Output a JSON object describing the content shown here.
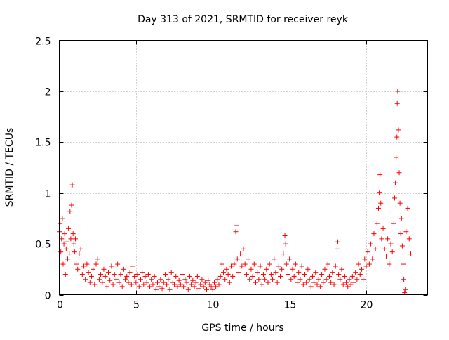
{
  "chart_data": {
    "type": "scatter",
    "title": "Day 313 of 2021, SRMTID for receiver reyk",
    "xlabel": "GPS time / hours",
    "ylabel": "SRMTID / TECUs",
    "xlim": [
      0,
      24
    ],
    "ylim": [
      0,
      2.5
    ],
    "xticks": [
      0,
      5,
      10,
      15,
      20
    ],
    "xtick_labels": [
      "0",
      "5",
      "10",
      "15",
      "20"
    ],
    "yticks": [
      0,
      0.5,
      1,
      1.5,
      2,
      2.5
    ],
    "ytick_labels": [
      "0",
      "0.5",
      "1",
      "1.5",
      "2",
      "2.5"
    ],
    "grid": true,
    "marker": "+",
    "color": "#ff0000",
    "series": [
      {
        "name": "SRMTID",
        "points": [
          [
            0.0,
            0.62
          ],
          [
            0.05,
            0.7
          ],
          [
            0.1,
            0.42
          ],
          [
            0.15,
            0.55
          ],
          [
            0.2,
            0.75
          ],
          [
            0.25,
            0.3
          ],
          [
            0.3,
            0.5
          ],
          [
            0.35,
            0.6
          ],
          [
            0.4,
            0.2
          ],
          [
            0.45,
            0.45
          ],
          [
            0.5,
            0.52
          ],
          [
            0.55,
            0.35
          ],
          [
            0.6,
            0.65
          ],
          [
            0.65,
            0.4
          ],
          [
            0.7,
            0.82
          ],
          [
            0.75,
            0.55
          ],
          [
            0.8,
            0.88
          ],
          [
            0.82,
            1.05
          ],
          [
            0.85,
            1.08
          ],
          [
            0.9,
            0.6
          ],
          [
            0.95,
            0.5
          ],
          [
            1.0,
            0.42
          ],
          [
            1.05,
            0.55
          ],
          [
            1.1,
            0.3
          ],
          [
            1.2,
            0.25
          ],
          [
            1.3,
            0.4
          ],
          [
            1.4,
            0.45
          ],
          [
            1.5,
            0.2
          ],
          [
            1.6,
            0.28
          ],
          [
            1.7,
            0.15
          ],
          [
            1.8,
            0.3
          ],
          [
            1.9,
            0.22
          ],
          [
            2.0,
            0.12
          ],
          [
            2.1,
            0.18
          ],
          [
            2.2,
            0.25
          ],
          [
            2.3,
            0.1
          ],
          [
            2.4,
            0.3
          ],
          [
            2.5,
            0.35
          ],
          [
            2.6,
            0.15
          ],
          [
            2.7,
            0.2
          ],
          [
            2.8,
            0.12
          ],
          [
            2.9,
            0.25
          ],
          [
            3.0,
            0.18
          ],
          [
            3.1,
            0.08
          ],
          [
            3.2,
            0.22
          ],
          [
            3.3,
            0.14
          ],
          [
            3.4,
            0.28
          ],
          [
            3.5,
            0.1
          ],
          [
            3.6,
            0.2
          ],
          [
            3.7,
            0.15
          ],
          [
            3.8,
            0.3
          ],
          [
            3.9,
            0.12
          ],
          [
            4.0,
            0.2
          ],
          [
            4.1,
            0.08
          ],
          [
            4.2,
            0.25
          ],
          [
            4.3,
            0.15
          ],
          [
            4.4,
            0.18
          ],
          [
            4.5,
            0.12
          ],
          [
            4.6,
            0.22
          ],
          [
            4.7,
            0.1
          ],
          [
            4.8,
            0.28
          ],
          [
            4.9,
            0.18
          ],
          [
            5.0,
            0.12
          ],
          [
            5.1,
            0.2
          ],
          [
            5.2,
            0.08
          ],
          [
            5.3,
            0.15
          ],
          [
            5.4,
            0.22
          ],
          [
            5.5,
            0.1
          ],
          [
            5.6,
            0.18
          ],
          [
            5.7,
            0.12
          ],
          [
            5.8,
            0.2
          ],
          [
            5.9,
            0.08
          ],
          [
            6.0,
            0.15
          ],
          [
            6.1,
            0.1
          ],
          [
            6.2,
            0.18
          ],
          [
            6.3,
            0.05
          ],
          [
            6.4,
            0.12
          ],
          [
            6.5,
            0.08
          ],
          [
            6.6,
            0.15
          ],
          [
            6.7,
            0.06
          ],
          [
            6.8,
            0.12
          ],
          [
            6.9,
            0.2
          ],
          [
            7.0,
            0.1
          ],
          [
            7.1,
            0.15
          ],
          [
            7.2,
            0.05
          ],
          [
            7.3,
            0.22
          ],
          [
            7.4,
            0.12
          ],
          [
            7.5,
            0.1
          ],
          [
            7.6,
            0.18
          ],
          [
            7.7,
            0.08
          ],
          [
            7.8,
            0.14
          ],
          [
            7.9,
            0.1
          ],
          [
            8.0,
            0.2
          ],
          [
            8.1,
            0.08
          ],
          [
            8.2,
            0.15
          ],
          [
            8.3,
            0.12
          ],
          [
            8.4,
            0.05
          ],
          [
            8.5,
            0.18
          ],
          [
            8.6,
            0.1
          ],
          [
            8.7,
            0.14
          ],
          [
            8.8,
            0.08
          ],
          [
            8.9,
            0.12
          ],
          [
            9.0,
            0.18
          ],
          [
            9.1,
            0.06
          ],
          [
            9.2,
            0.1
          ],
          [
            9.3,
            0.15
          ],
          [
            9.4,
            0.08
          ],
          [
            9.5,
            0.12
          ],
          [
            9.6,
            0.05
          ],
          [
            9.7,
            0.14
          ],
          [
            9.8,
            0.1
          ],
          [
            9.9,
            0.08
          ],
          [
            10.0,
            0.05
          ],
          [
            10.1,
            0.12
          ],
          [
            10.2,
            0.08
          ],
          [
            10.3,
            0.15
          ],
          [
            10.4,
            0.1
          ],
          [
            10.5,
            0.18
          ],
          [
            10.6,
            0.3
          ],
          [
            10.7,
            0.22
          ],
          [
            10.8,
            0.15
          ],
          [
            10.9,
            0.25
          ],
          [
            11.0,
            0.2
          ],
          [
            11.1,
            0.12
          ],
          [
            11.2,
            0.28
          ],
          [
            11.3,
            0.18
          ],
          [
            11.4,
            0.3
          ],
          [
            11.5,
            0.62
          ],
          [
            11.52,
            0.68
          ],
          [
            11.6,
            0.35
          ],
          [
            11.7,
            0.22
          ],
          [
            11.8,
            0.4
          ],
          [
            11.9,
            0.28
          ],
          [
            12.0,
            0.45
          ],
          [
            12.1,
            0.3
          ],
          [
            12.2,
            0.2
          ],
          [
            12.3,
            0.35
          ],
          [
            12.4,
            0.15
          ],
          [
            12.5,
            0.25
          ],
          [
            12.6,
            0.18
          ],
          [
            12.7,
            0.3
          ],
          [
            12.8,
            0.12
          ],
          [
            12.9,
            0.22
          ],
          [
            13.0,
            0.15
          ],
          [
            13.1,
            0.28
          ],
          [
            13.2,
            0.1
          ],
          [
            13.3,
            0.2
          ],
          [
            13.4,
            0.15
          ],
          [
            13.5,
            0.25
          ],
          [
            13.6,
            0.12
          ],
          [
            13.7,
            0.3
          ],
          [
            13.8,
            0.2
          ],
          [
            13.9,
            0.15
          ],
          [
            14.0,
            0.35
          ],
          [
            14.1,
            0.22
          ],
          [
            14.2,
            0.12
          ],
          [
            14.3,
            0.28
          ],
          [
            14.4,
            0.18
          ],
          [
            14.5,
            0.25
          ],
          [
            14.6,
            0.4
          ],
          [
            14.7,
            0.58
          ],
          [
            14.75,
            0.5
          ],
          [
            14.8,
            0.3
          ],
          [
            14.9,
            0.2
          ],
          [
            15.0,
            0.35
          ],
          [
            15.1,
            0.15
          ],
          [
            15.2,
            0.25
          ],
          [
            15.3,
            0.18
          ],
          [
            15.4,
            0.3
          ],
          [
            15.5,
            0.12
          ],
          [
            15.6,
            0.22
          ],
          [
            15.7,
            0.15
          ],
          [
            15.8,
            0.28
          ],
          [
            15.9,
            0.1
          ],
          [
            16.0,
            0.2
          ],
          [
            16.1,
            0.12
          ],
          [
            16.2,
            0.25
          ],
          [
            16.3,
            0.15
          ],
          [
            16.4,
            0.08
          ],
          [
            16.5,
            0.18
          ],
          [
            16.6,
            0.12
          ],
          [
            16.7,
            0.22
          ],
          [
            16.8,
            0.1
          ],
          [
            16.9,
            0.15
          ],
          [
            17.0,
            0.08
          ],
          [
            17.1,
            0.2
          ],
          [
            17.2,
            0.12
          ],
          [
            17.3,
            0.25
          ],
          [
            17.4,
            0.15
          ],
          [
            17.5,
            0.3
          ],
          [
            17.6,
            0.18
          ],
          [
            17.7,
            0.12
          ],
          [
            17.8,
            0.22
          ],
          [
            17.9,
            0.1
          ],
          [
            18.0,
            0.28
          ],
          [
            18.1,
            0.45
          ],
          [
            18.15,
            0.52
          ],
          [
            18.2,
            0.2
          ],
          [
            18.3,
            0.15
          ],
          [
            18.4,
            0.25
          ],
          [
            18.5,
            0.1
          ],
          [
            18.6,
            0.18
          ],
          [
            18.7,
            0.12
          ],
          [
            18.8,
            0.08
          ],
          [
            18.9,
            0.15
          ],
          [
            19.0,
            0.1
          ],
          [
            19.1,
            0.18
          ],
          [
            19.2,
            0.12
          ],
          [
            19.3,
            0.22
          ],
          [
            19.4,
            0.15
          ],
          [
            19.5,
            0.3
          ],
          [
            19.6,
            0.2
          ],
          [
            19.7,
            0.25
          ],
          [
            19.8,
            0.15
          ],
          [
            19.9,
            0.35
          ],
          [
            20.0,
            0.28
          ],
          [
            20.1,
            0.42
          ],
          [
            20.2,
            0.3
          ],
          [
            20.3,
            0.5
          ],
          [
            20.4,
            0.35
          ],
          [
            20.5,
            0.6
          ],
          [
            20.6,
            0.45
          ],
          [
            20.7,
            0.7
          ],
          [
            20.8,
            0.85
          ],
          [
            20.85,
            1.0
          ],
          [
            20.9,
            1.18
          ],
          [
            20.95,
            0.9
          ],
          [
            21.0,
            0.55
          ],
          [
            21.1,
            0.65
          ],
          [
            21.2,
            0.45
          ],
          [
            21.3,
            0.38
          ],
          [
            21.4,
            0.55
          ],
          [
            21.5,
            0.3
          ],
          [
            21.6,
            0.5
          ],
          [
            21.7,
            0.42
          ],
          [
            21.8,
            0.7
          ],
          [
            21.85,
            0.95
          ],
          [
            21.9,
            1.1
          ],
          [
            21.95,
            1.35
          ],
          [
            22.0,
            1.55
          ],
          [
            22.02,
            1.88
          ],
          [
            22.05,
            2.0
          ],
          [
            22.1,
            1.62
          ],
          [
            22.15,
            1.2
          ],
          [
            22.2,
            0.9
          ],
          [
            22.25,
            0.6
          ],
          [
            22.3,
            0.75
          ],
          [
            22.35,
            0.48
          ],
          [
            22.4,
            0.3
          ],
          [
            22.45,
            0.15
          ],
          [
            22.5,
            0.02
          ],
          [
            22.55,
            0.05
          ],
          [
            22.6,
            0.62
          ],
          [
            22.7,
            0.85
          ],
          [
            22.8,
            0.55
          ],
          [
            22.9,
            0.4
          ]
        ]
      }
    ]
  }
}
